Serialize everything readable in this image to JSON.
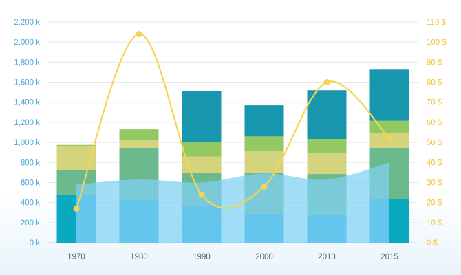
{
  "chart_data": {
    "type": "bar",
    "categories": [
      "1970",
      "1980",
      "1990",
      "2000",
      "2010",
      "2015"
    ],
    "stack_series": [
      {
        "values": [
          480,
          430,
          370,
          290,
          275,
          435
        ],
        "color": "#1faad9"
      },
      {
        "values": [
          240,
          515,
          325,
          410,
          410,
          510
        ],
        "color": "#6cb98d"
      },
      {
        "values": [
          240,
          75,
          165,
          210,
          205,
          150
        ],
        "color": "#d3d47c"
      },
      {
        "values": [
          15,
          110,
          140,
          150,
          145,
          120
        ],
        "color": "#93c961"
      },
      {
        "values": [
          0,
          0,
          510,
          310,
          485,
          510
        ],
        "color": "#1796ad"
      }
    ],
    "area_series": {
      "values": [
        580,
        630,
        600,
        690,
        630,
        800
      ],
      "color": "#7fd1f4"
    },
    "line_series": {
      "values": [
        17,
        104,
        24,
        28,
        80,
        52
      ],
      "color": "#f7d354"
    },
    "y_left": {
      "min": 0,
      "max": 2200,
      "step": 200,
      "tick_labels": [
        "0 k",
        "200 k",
        "400 k",
        "600 k",
        "800 k",
        "1,000 k",
        "1,200 k",
        "1,400 k",
        "1,600 k",
        "1,800 k",
        "2,000 k",
        "2,200 k"
      ],
      "color": "#4aa8d8"
    },
    "y_right": {
      "min": 0,
      "max": 110,
      "step": 10,
      "tick_labels": [
        "0 $",
        "10 $",
        "20 $",
        "30 $",
        "40 $",
        "50 $",
        "60 $",
        "70 $",
        "80 $",
        "90 $",
        "100 $",
        "110 $"
      ],
      "color": "#f3c440"
    },
    "grid": true,
    "title": "",
    "xlabel": "",
    "ylabel": ""
  }
}
